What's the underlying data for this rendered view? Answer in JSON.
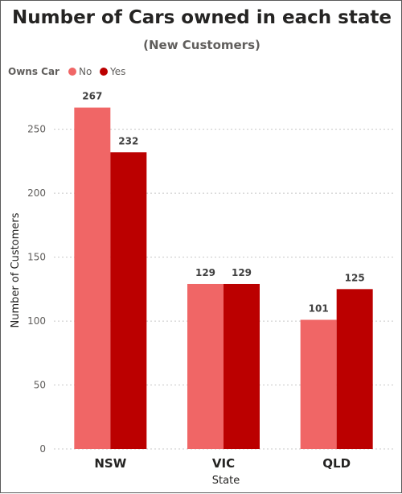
{
  "chart_data": {
    "type": "bar",
    "title": "Number of Cars owned in each state",
    "subtitle": "(New Customers)",
    "legend_title": "Owns Car",
    "legend_position": "top-left",
    "categories": [
      "NSW",
      "VIC",
      "QLD"
    ],
    "series": [
      {
        "name": "No",
        "color": "#f06666",
        "values": [
          267,
          129,
          101
        ]
      },
      {
        "name": "Yes",
        "color": "#bb0000",
        "values": [
          232,
          129,
          125
        ]
      }
    ],
    "xlabel": "State",
    "ylabel": "Number of Customers",
    "ylim": [
      0,
      280
    ],
    "yticks": [
      0,
      50,
      100,
      150,
      200,
      250
    ],
    "grid": true
  }
}
